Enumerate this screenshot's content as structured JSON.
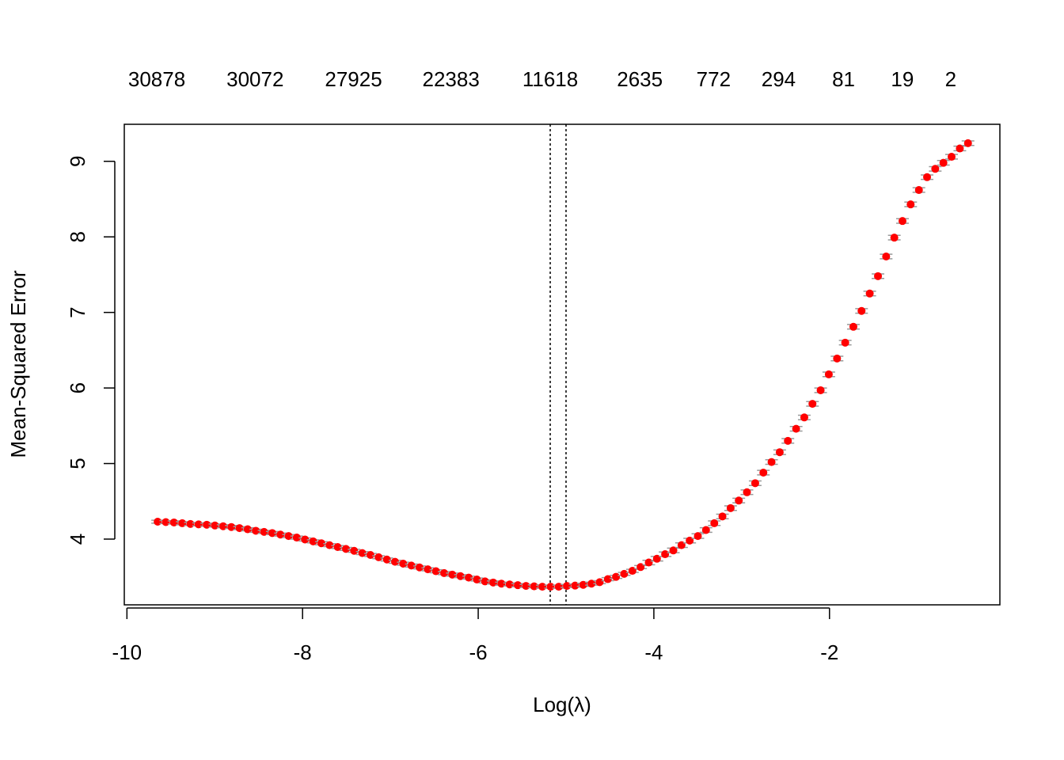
{
  "chart_data": {
    "type": "scatter",
    "xlabel": "Log(λ)",
    "ylabel": "Mean-Squared Error",
    "color": "#ff0000",
    "error_color": "#999999",
    "x": [
      -9.65,
      -9.557,
      -9.464,
      -9.37,
      -9.277,
      -9.184,
      -9.091,
      -8.998,
      -8.904,
      -8.811,
      -8.718,
      -8.625,
      -8.532,
      -8.438,
      -8.345,
      -8.252,
      -8.159,
      -8.066,
      -7.972,
      -7.879,
      -7.786,
      -7.693,
      -7.6,
      -7.506,
      -7.413,
      -7.32,
      -7.227,
      -7.134,
      -7.04,
      -6.947,
      -6.854,
      -6.761,
      -6.668,
      -6.574,
      -6.481,
      -6.388,
      -6.295,
      -6.202,
      -6.108,
      -6.015,
      -5.922,
      -5.829,
      -5.736,
      -5.642,
      -5.549,
      -5.456,
      -5.363,
      -5.27,
      -5.176,
      -5.083,
      -4.99,
      -4.897,
      -4.804,
      -4.71,
      -4.617,
      -4.524,
      -4.431,
      -4.338,
      -4.244,
      -4.151,
      -4.058,
      -3.965,
      -3.872,
      -3.778,
      -3.685,
      -3.592,
      -3.499,
      -3.406,
      -3.312,
      -3.219,
      -3.126,
      -3.033,
      -2.94,
      -2.846,
      -2.753,
      -2.66,
      -2.567,
      -2.474,
      -2.38,
      -2.287,
      -2.194,
      -2.101,
      -2.008,
      -1.914,
      -1.821,
      -1.728,
      -1.635,
      -1.542,
      -1.448,
      -1.355,
      -1.262,
      -1.169,
      -1.076,
      -0.982,
      -0.889,
      -0.796,
      -0.703,
      -0.61,
      -0.516,
      -0.423
    ],
    "values": [
      4.23,
      4.225,
      4.22,
      4.21,
      4.2,
      4.195,
      4.19,
      4.18,
      4.17,
      4.16,
      4.145,
      4.13,
      4.11,
      4.095,
      4.08,
      4.06,
      4.04,
      4.02,
      3.995,
      3.97,
      3.945,
      3.92,
      3.895,
      3.87,
      3.845,
      3.815,
      3.79,
      3.76,
      3.73,
      3.7,
      3.675,
      3.65,
      3.625,
      3.6,
      3.575,
      3.55,
      3.53,
      3.51,
      3.49,
      3.465,
      3.44,
      3.425,
      3.41,
      3.4,
      3.39,
      3.38,
      3.375,
      3.37,
      3.37,
      3.37,
      3.38,
      3.385,
      3.395,
      3.41,
      3.43,
      3.47,
      3.5,
      3.54,
      3.58,
      3.63,
      3.69,
      3.74,
      3.8,
      3.85,
      3.92,
      3.98,
      4.04,
      4.12,
      4.21,
      4.3,
      4.41,
      4.51,
      4.62,
      4.74,
      4.88,
      5.02,
      5.15,
      5.3,
      5.46,
      5.61,
      5.79,
      5.97,
      6.18,
      6.39,
      6.6,
      6.81,
      7.02,
      7.25,
      7.48,
      7.74,
      7.99,
      8.21,
      8.43,
      8.62,
      8.79,
      8.9,
      8.98,
      9.06,
      9.17,
      9.24
    ],
    "errors": [
      0.02,
      0.02,
      0.02,
      0.02,
      0.02,
      0.02,
      0.02,
      0.02,
      0.02,
      0.02,
      0.02,
      0.02,
      0.02,
      0.02,
      0.02,
      0.02,
      0.02,
      0.02,
      0.02,
      0.02,
      0.02,
      0.02,
      0.02,
      0.02,
      0.02,
      0.02,
      0.02,
      0.02,
      0.02,
      0.02,
      0.02,
      0.02,
      0.02,
      0.02,
      0.02,
      0.02,
      0.02,
      0.02,
      0.02,
      0.02,
      0.02,
      0.02,
      0.02,
      0.02,
      0.02,
      0.02,
      0.02,
      0.02,
      0.02,
      0.02,
      0.02,
      0.02,
      0.02,
      0.02,
      0.02,
      0.02,
      0.02,
      0.02,
      0.02,
      0.02,
      0.03,
      0.03,
      0.03,
      0.03,
      0.03,
      0.03,
      0.03,
      0.03,
      0.03,
      0.03,
      0.03,
      0.03,
      0.03,
      0.03,
      0.03,
      0.03,
      0.03,
      0.03,
      0.03,
      0.03,
      0.03,
      0.03,
      0.03,
      0.03,
      0.03,
      0.03,
      0.03,
      0.03,
      0.03,
      0.03,
      0.03,
      0.03,
      0.03,
      0.03,
      0.03,
      0.03,
      0.03,
      0.03,
      0.03,
      0.03
    ],
    "xlim": [
      -10.03,
      -0.06
    ],
    "ylim": [
      3.13,
      9.49
    ],
    "xticks": [
      -10,
      -8,
      -6,
      -4,
      -2
    ],
    "yticks": [
      4,
      5,
      6,
      7,
      8,
      9
    ],
    "top_ticks": [
      {
        "value": -9.66,
        "label": "30878"
      },
      {
        "value": -8.54,
        "label": "30072"
      },
      {
        "value": -7.42,
        "label": "27925"
      },
      {
        "value": -6.31,
        "label": "22383"
      },
      {
        "value": -5.18,
        "label": "11618"
      },
      {
        "value": -4.16,
        "label": "2635"
      },
      {
        "value": -3.32,
        "label": "772"
      },
      {
        "value": -2.58,
        "label": "294"
      },
      {
        "value": -1.84,
        "label": "81"
      },
      {
        "value": -1.17,
        "label": "19"
      },
      {
        "value": -0.62,
        "label": "2"
      }
    ],
    "vlines": [
      -5.18,
      -5.0
    ]
  }
}
